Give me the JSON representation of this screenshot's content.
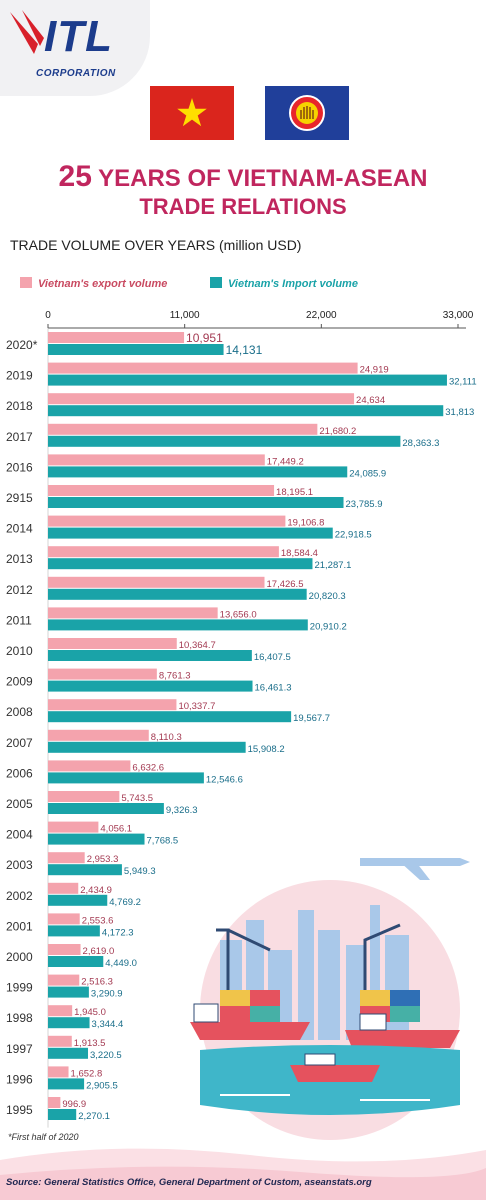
{
  "logo": {
    "brand": "ITL",
    "sub": "CORPORATION"
  },
  "header": {
    "title_number": "25",
    "title_line1": "YEARS OF VIETNAM-ASEAN",
    "title_line2": "TRADE RELATIONS",
    "subtitle": "TRADE VOLUME OVER YEARS (million USD)"
  },
  "colors": {
    "export": "#f4a3ad",
    "import": "#1aa3a8",
    "title": "#c0265e"
  },
  "footnote": "*First half of 2020",
  "source": "Source: General Statistics Office, General Department of Custom, aseanstats.org",
  "chart_data": {
    "type": "bar",
    "orientation": "horizontal",
    "xlim": [
      0,
      33000
    ],
    "ticks": [
      "0",
      "11,000",
      "22,000",
      "33,000"
    ],
    "tick_values": [
      0,
      11000,
      22000,
      33000
    ],
    "legend_placement": "top",
    "categories": [
      "2020*",
      "2019",
      "2018",
      "2017",
      "2016",
      "2915",
      "2014",
      "2013",
      "2012",
      "2011",
      "2010",
      "2009",
      "2008",
      "2007",
      "2006",
      "2005",
      "2004",
      "2003",
      "2002",
      "2001",
      "2000",
      "1999",
      "1998",
      "1997",
      "1996",
      "1995"
    ],
    "series": [
      {
        "name": "Vietnam's export volume",
        "values": [
          10951,
          24919,
          24634,
          21680.2,
          17449.2,
          18195.1,
          19106.8,
          18584.4,
          17426.5,
          13656.0,
          10364.7,
          8761.3,
          10337.7,
          8110.3,
          6632.6,
          5743.5,
          4056.1,
          2953.3,
          2434.9,
          2553.6,
          2619.0,
          2516.3,
          1945.0,
          1913.5,
          1652.8,
          996.9
        ],
        "labels": [
          "10,951",
          "24,919",
          "24,634",
          "21,680.2",
          "17,449.2",
          "18,195.1",
          "19,106.8",
          "18,584.4",
          "17,426.5",
          "13,656.0",
          "10,364.7",
          "8,761.3",
          "10,337.7",
          "8,110.3",
          "6,632.6",
          "5,743.5",
          "4,056.1",
          "2,953.3",
          "2,434.9",
          "2,553.6",
          "2,619.0",
          "2,516.3",
          "1,945.0",
          "1,913.5",
          "1,652.8",
          "996.9"
        ]
      },
      {
        "name": "Vietnam's Import volume",
        "values": [
          14131,
          32111,
          31813,
          28363.3,
          24085.9,
          23785.9,
          22918.5,
          21287.1,
          20820.3,
          20910.2,
          16407.5,
          16461.3,
          19567.7,
          15908.2,
          12546.6,
          9326.3,
          7768.5,
          5949.3,
          4769.2,
          4172.3,
          4449.0,
          3290.9,
          3344.4,
          3220.5,
          2905.5,
          2270.1
        ],
        "labels": [
          "14,131",
          "32,111",
          "31,813",
          "28,363.3",
          "24,085.9",
          "23,785.9",
          "22,918.5",
          "21,287.1",
          "20,820.3",
          "20,910.2",
          "16,407.5",
          "16,461.3",
          "19,567.7",
          "15,908.2",
          "12,546.6",
          "9,326.3",
          "7,768.5",
          "5,949.3",
          "4,769.2",
          "4,172.3",
          "4,449.0",
          "3,290.9",
          "3,344.4",
          "3,220.5",
          "2,905.5",
          "2,270.1"
        ]
      }
    ]
  }
}
